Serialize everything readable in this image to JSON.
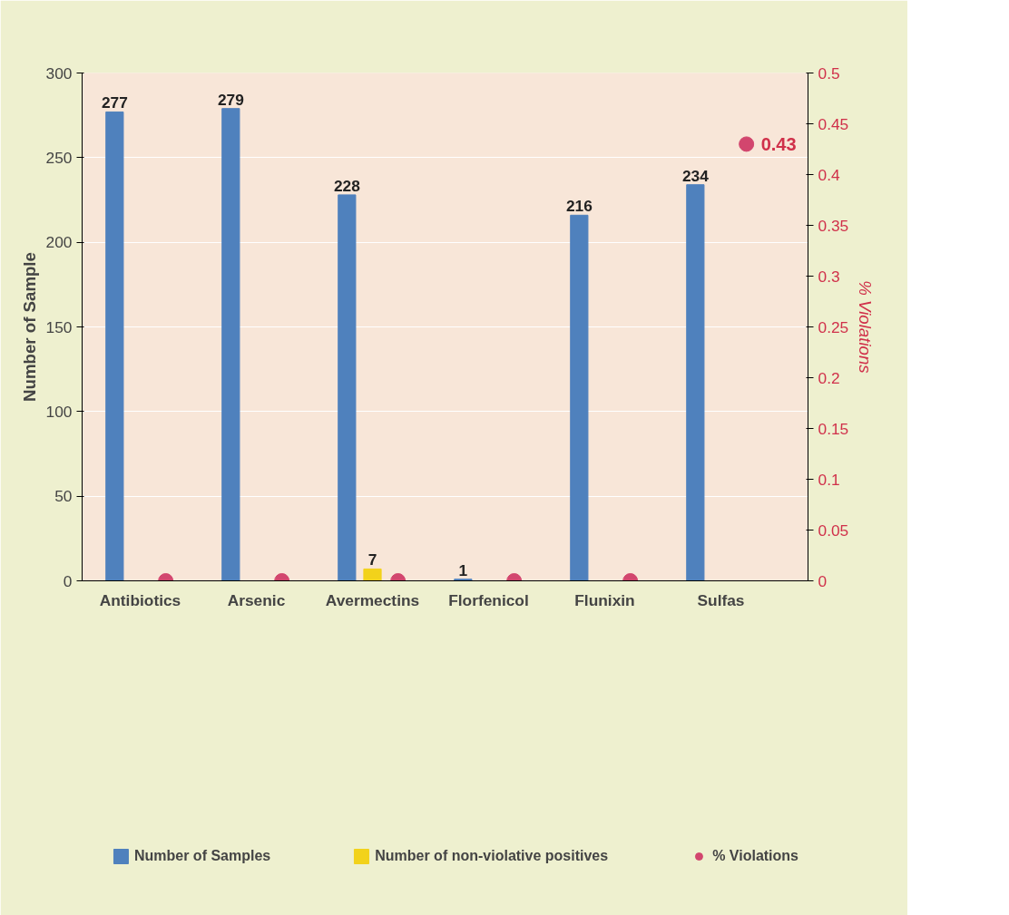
{
  "chart_data": {
    "type": "bar",
    "categories": [
      "Antibiotics",
      "Arsenic",
      "Avermectins",
      "Florfenicol",
      "Flunixin",
      "Sulfas"
    ],
    "series": [
      {
        "name": "Number of Samples",
        "color": "#4f81bd",
        "values": [
          277,
          279,
          228,
          1,
          216,
          234
        ],
        "value_labels": [
          "277",
          "279",
          "228",
          "1",
          "216",
          "234"
        ]
      },
      {
        "name": "Number of non-violative positives",
        "color": "#f2d21b",
        "values": [
          0,
          0,
          7,
          0,
          0,
          0
        ],
        "value_labels": [
          null,
          null,
          "7",
          null,
          null,
          null
        ]
      },
      {
        "name": "% Violations",
        "type": "scatter",
        "axis": "y2",
        "color": "#d2466e",
        "values": [
          0,
          0,
          0,
          0,
          0,
          0.43
        ],
        "value_labels": [
          null,
          null,
          null,
          null,
          null,
          "0.43"
        ]
      }
    ],
    "ylabel": "Number of Sample",
    "y2label": "% Violations",
    "ylim": [
      0,
      300
    ],
    "yticks": [
      0,
      50,
      100,
      150,
      200,
      250,
      300
    ],
    "y2lim": [
      0,
      0.5
    ],
    "y2ticks": [
      0,
      0.05,
      0.1,
      0.15,
      0.2,
      0.25,
      0.3,
      0.35,
      0.4,
      0.45,
      0.5
    ],
    "grid": "y",
    "legend": "bottom",
    "marker": "circle"
  }
}
